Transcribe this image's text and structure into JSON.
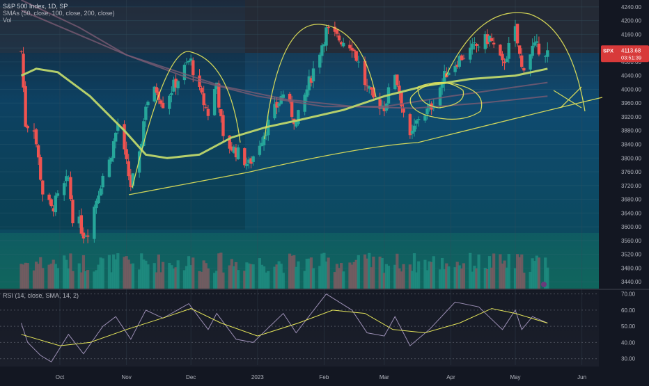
{
  "header": {
    "title": "S&P 500 Index, 1D, SP",
    "sma_label": "SMAs (50, close, 100, close, 200, close)",
    "vol_label": "Vol"
  },
  "rsi_panel": {
    "label": "RSI (14, close, SMA, 14, 2)"
  },
  "price_tag": {
    "symbol": "SPX",
    "price": "4113.68",
    "countdown": "03:51:39"
  },
  "colors": {
    "background": "#131722",
    "up": "#26a69a",
    "down": "#ef5350",
    "sma50": "#b5cf6b",
    "sma100": "#7a5b73",
    "sma200": "#7a5b73",
    "drawing": "#e6e65a",
    "rsi": "#9c8fb5",
    "rsi_ma": "#e6e65a",
    "text": "#b2b5be"
  },
  "chart_data": [
    {
      "type": "candlestick",
      "title": "S&P 500 Index, 1D, SP",
      "x_ticks": [
        "Oct",
        "Nov",
        "Dec",
        "2023",
        "Feb",
        "Mar",
        "Apr",
        "May",
        "Jun"
      ],
      "x_tick_dates": [
        "2022-10-01",
        "2022-11-01",
        "2022-12-01",
        "2023-01-01",
        "2023-02-01",
        "2023-03-01",
        "2023-04-01",
        "2023-05-01",
        "2023-06-01"
      ],
      "y_ticks": [
        "4240.00",
        "4200.00",
        "4160.00",
        "4120.00",
        "4080.00",
        "4040.00",
        "4000.00",
        "3960.00",
        "3920.00",
        "3880.00",
        "3840.00",
        "3800.00",
        "3760.00",
        "3720.00",
        "3680.00",
        "3640.00",
        "3600.00",
        "3560.00",
        "3520.00",
        "3480.00",
        "3440.00"
      ],
      "ylim": [
        3420,
        4260
      ],
      "last_price": 4113.68,
      "waypoints": [
        [
          "2022-09-13",
          4110
        ],
        [
          "2022-09-15",
          3900
        ],
        [
          "2022-09-19",
          3890
        ],
        [
          "2022-09-23",
          3700
        ],
        [
          "2022-09-27",
          3650
        ],
        [
          "2022-10-05",
          3740
        ],
        [
          "2022-10-07",
          3630
        ],
        [
          "2022-10-10",
          3610
        ],
        [
          "2022-10-12",
          3580
        ],
        [
          "2022-10-14",
          3590
        ],
        [
          "2022-10-21",
          3750
        ],
        [
          "2022-10-24",
          3790
        ],
        [
          "2022-10-28",
          3900
        ],
        [
          "2022-11-03",
          3720
        ],
        [
          "2022-11-07",
          3800
        ],
        [
          "2022-11-10",
          3960
        ],
        [
          "2022-11-15",
          4000
        ],
        [
          "2022-11-18",
          3960
        ],
        [
          "2022-11-25",
          4030
        ],
        [
          "2022-11-30",
          4080
        ],
        [
          "2022-12-01",
          4080
        ],
        [
          "2022-12-05",
          3990
        ],
        [
          "2022-12-09",
          3930
        ],
        [
          "2022-12-13",
          4020
        ],
        [
          "2022-12-16",
          3850
        ],
        [
          "2022-12-22",
          3820
        ],
        [
          "2022-12-28",
          3780
        ],
        [
          "2023-01-06",
          3900
        ],
        [
          "2023-01-13",
          3990
        ],
        [
          "2023-01-19",
          3900
        ],
        [
          "2023-01-25",
          4020
        ],
        [
          "2023-02-02",
          4170
        ],
        [
          "2023-02-07",
          4150
        ],
        [
          "2023-02-14",
          4130
        ],
        [
          "2023-02-21",
          4000
        ],
        [
          "2023-02-24",
          3970
        ],
        [
          "2023-03-01",
          3950
        ],
        [
          "2023-03-06",
          4050
        ],
        [
          "2023-03-13",
          3850
        ],
        [
          "2023-03-17",
          3920
        ],
        [
          "2023-03-22",
          3940
        ],
        [
          "2023-03-30",
          4050
        ],
        [
          "2023-04-05",
          4090
        ],
        [
          "2023-04-14",
          4130
        ],
        [
          "2023-04-19",
          4150
        ],
        [
          "2023-04-25",
          4070
        ],
        [
          "2023-05-01",
          4170
        ],
        [
          "2023-05-04",
          4060
        ],
        [
          "2023-05-09",
          4120
        ],
        [
          "2023-05-12",
          4120
        ],
        [
          "2023-05-16",
          4110
        ]
      ],
      "sma50": [
        [
          "2022-09-13",
          4040
        ],
        [
          "2022-09-20",
          4060
        ],
        [
          "2022-09-30",
          4050
        ],
        [
          "2022-10-15",
          3980
        ],
        [
          "2022-10-31",
          3880
        ],
        [
          "2022-11-10",
          3810
        ],
        [
          "2022-11-20",
          3800
        ],
        [
          "2022-12-05",
          3810
        ],
        [
          "2022-12-20",
          3860
        ],
        [
          "2023-01-05",
          3890
        ],
        [
          "2023-01-20",
          3910
        ],
        [
          "2023-02-10",
          3940
        ],
        [
          "2023-03-01",
          3980
        ],
        [
          "2023-03-20",
          4010
        ],
        [
          "2023-04-10",
          4030
        ],
        [
          "2023-05-01",
          4040
        ],
        [
          "2023-05-16",
          4060
        ]
      ],
      "sma100": [
        [
          "2022-09-13",
          4260
        ],
        [
          "2022-10-10",
          4180
        ],
        [
          "2022-11-01",
          4100
        ],
        [
          "2022-12-01",
          4030
        ],
        [
          "2023-01-01",
          3980
        ],
        [
          "2023-02-01",
          3950
        ],
        [
          "2023-03-01",
          3950
        ],
        [
          "2023-04-01",
          3980
        ],
        [
          "2023-05-16",
          4020
        ]
      ],
      "sma200": [
        [
          "2022-09-13",
          4230
        ],
        [
          "2022-11-01",
          4100
        ],
        [
          "2022-12-15",
          4010
        ],
        [
          "2023-01-15",
          3970
        ],
        [
          "2023-02-15",
          3950
        ],
        [
          "2023-03-15",
          3945
        ],
        [
          "2023-04-15",
          3960
        ],
        [
          "2023-05-16",
          3980
        ]
      ]
    },
    {
      "type": "bar",
      "title": "Vol"
    },
    {
      "type": "line",
      "title": "RSI (14, close, SMA, 14, 2)",
      "y_ticks": [
        "70.00",
        "60.00",
        "50.00",
        "40.00",
        "30.00"
      ],
      "ylim": [
        26,
        72
      ],
      "series": [
        {
          "name": "RSI",
          "points": [
            [
              "2022-09-13",
              52
            ],
            [
              "2022-09-16",
              40
            ],
            [
              "2022-09-22",
              32
            ],
            [
              "2022-09-27",
              28
            ],
            [
              "2022-10-05",
              45
            ],
            [
              "2022-10-12",
              33
            ],
            [
              "2022-10-21",
              50
            ],
            [
              "2022-10-27",
              56
            ],
            [
              "2022-11-03",
              42
            ],
            [
              "2022-11-10",
              60
            ],
            [
              "2022-11-18",
              55
            ],
            [
              "2022-11-30",
              64
            ],
            [
              "2022-12-09",
              48
            ],
            [
              "2022-12-13",
              58
            ],
            [
              "2022-12-22",
              42
            ],
            [
              "2022-12-30",
              40
            ],
            [
              "2023-01-13",
              58
            ],
            [
              "2023-01-19",
              46
            ],
            [
              "2023-02-02",
              70
            ],
            [
              "2023-02-14",
              60
            ],
            [
              "2023-02-21",
              46
            ],
            [
              "2023-03-01",
              44
            ],
            [
              "2023-03-06",
              56
            ],
            [
              "2023-03-13",
              38
            ],
            [
              "2023-03-22",
              48
            ],
            [
              "2023-04-03",
              65
            ],
            [
              "2023-04-14",
              62
            ],
            [
              "2023-04-25",
              48
            ],
            [
              "2023-05-01",
              60
            ],
            [
              "2023-05-04",
              48
            ],
            [
              "2023-05-09",
              56
            ],
            [
              "2023-05-16",
              52
            ]
          ]
        },
        {
          "name": "SMA",
          "points": [
            [
              "2022-09-13",
              45
            ],
            [
              "2022-10-01",
              38
            ],
            [
              "2022-10-15",
              40
            ],
            [
              "2022-11-01",
              48
            ],
            [
              "2022-11-20",
              56
            ],
            [
              "2022-12-01",
              61
            ],
            [
              "2022-12-15",
              52
            ],
            [
              "2023-01-01",
              44
            ],
            [
              "2023-01-20",
              52
            ],
            [
              "2023-02-05",
              60
            ],
            [
              "2023-02-20",
              58
            ],
            [
              "2023-03-05",
              48
            ],
            [
              "2023-03-20",
              46
            ],
            [
              "2023-04-05",
              52
            ],
            [
              "2023-04-20",
              61
            ],
            [
              "2023-05-01",
              58
            ],
            [
              "2023-05-16",
              52
            ]
          ]
        }
      ]
    }
  ]
}
